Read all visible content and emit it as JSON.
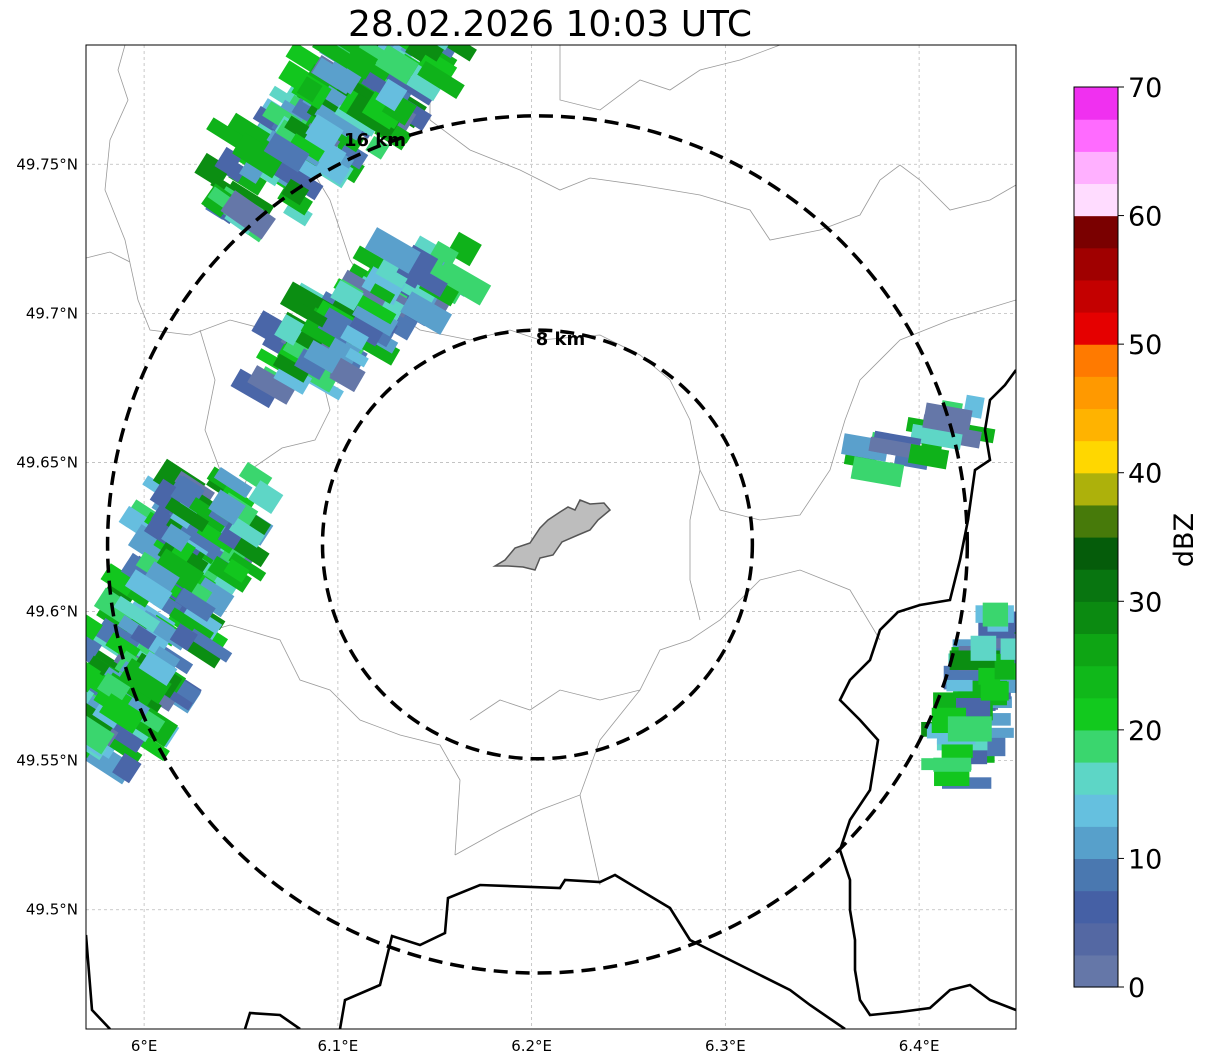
{
  "title": "28.02.2026 10:03 UTC",
  "map": {
    "lon_range": [
      5.97,
      6.45
    ],
    "lat_range": [
      49.46,
      49.79
    ],
    "lon_ticks": [
      {
        "value": 6.0,
        "label": "6°E"
      },
      {
        "value": 6.1,
        "label": "6.1°E"
      },
      {
        "value": 6.2,
        "label": "6.2°E"
      },
      {
        "value": 6.3,
        "label": "6.3°E"
      },
      {
        "value": 6.4,
        "label": "6.4°E"
      }
    ],
    "lat_ticks": [
      {
        "value": 49.75,
        "label": "49.75°N"
      },
      {
        "value": 49.7,
        "label": "49.7°N"
      },
      {
        "value": 49.65,
        "label": "49.65°N"
      },
      {
        "value": 49.6,
        "label": "49.6°N"
      },
      {
        "value": 49.55,
        "label": "49.55°N"
      },
      {
        "value": 49.5,
        "label": "49.5°N"
      }
    ],
    "grid": true,
    "center": {
      "lon": 6.203,
      "lat": 49.6225
    },
    "range_rings": [
      {
        "radius_km": 8,
        "label": "8 km"
      },
      {
        "radius_km": 16,
        "label": "16 km"
      }
    ],
    "city_outline_color": "#bdbdbd",
    "echo_colors": [
      "#6577a8",
      "#4a66a8",
      "#4e78b4",
      "#5aa0cc",
      "#66bedf",
      "#5ed6c6",
      "#3ad66e",
      "#12c61e",
      "#0fb21a",
      "#0b8e12"
    ]
  },
  "colorbar": {
    "label": "dBZ",
    "min": 0,
    "max": 70,
    "ticks": [
      {
        "value": 0,
        "label": "0"
      },
      {
        "value": 10,
        "label": "10"
      },
      {
        "value": 20,
        "label": "20"
      },
      {
        "value": 30,
        "label": "30"
      },
      {
        "value": 40,
        "label": "40"
      },
      {
        "value": 50,
        "label": "50"
      },
      {
        "value": 60,
        "label": "60"
      },
      {
        "value": 70,
        "label": "70"
      }
    ],
    "colors": [
      "#6577a8",
      "#5468a3",
      "#4560a5",
      "#4a78b0",
      "#57a0cb",
      "#65c0df",
      "#5dd6c6",
      "#3ad66e",
      "#12c91e",
      "#10b81a",
      "#0ea514",
      "#0b8a11",
      "#087510",
      "#055c0a",
      "#477a0a",
      "#adb10b",
      "#ffd700",
      "#ffb300",
      "#ff9900",
      "#ff7a00",
      "#e50000",
      "#c40000",
      "#a00000",
      "#7a0000",
      "#ffdcff",
      "#ffb0ff",
      "#ff6bff",
      "#f030f0"
    ]
  }
}
